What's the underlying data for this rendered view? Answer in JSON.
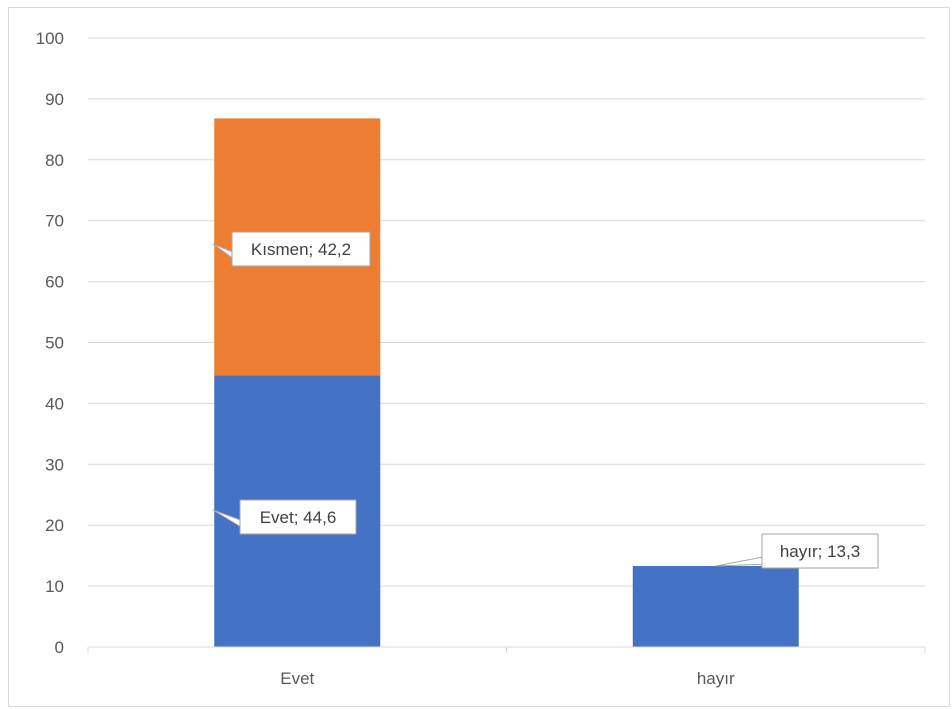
{
  "chart_data": {
    "type": "bar",
    "stacked": true,
    "categories": [
      "Evet",
      "hayır"
    ],
    "series": [
      {
        "values": [
          44.6,
          13.3
        ],
        "color": "#4472c4",
        "labels": [
          "Evet; 44,6",
          "hayır; 13,3"
        ]
      },
      {
        "values": [
          42.2,
          null
        ],
        "color": "#ed7d31",
        "labels": [
          "Kısmen; 42,2",
          null
        ]
      }
    ],
    "yticks": [
      "0",
      "10",
      "20",
      "30",
      "40",
      "50",
      "60",
      "70",
      "80",
      "90",
      "100"
    ],
    "ylim": [
      0,
      100
    ],
    "grid": true,
    "legend": "none"
  }
}
